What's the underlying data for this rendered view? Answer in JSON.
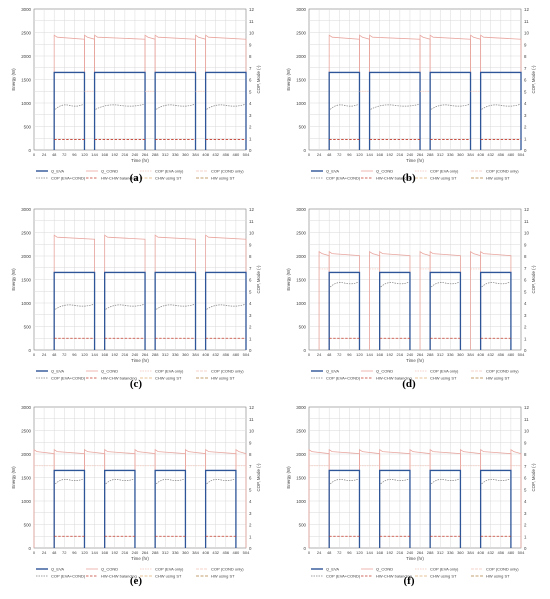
{
  "panel_labels": [
    "(a)",
    "(b)",
    "(c)",
    "(d)",
    "(e)",
    "(f)"
  ],
  "colors": {
    "q_eva": "#2e5597",
    "q_cond": "#e8a59e",
    "cop_eva_only": "#f2c2b8",
    "cop_cond_only": "#f2c2b8",
    "cop_eva_cond": "#808080",
    "hw_chw_balancing": "#c0392b",
    "chw_using_st": "#e0b07a",
    "hw_using_st": "#b08040",
    "grid": "#d9d9d9",
    "axis": "#7f7f7f"
  },
  "chart_data": [
    {
      "type": "line",
      "panel": "(a)",
      "xlabel": "Time (hr)",
      "ylabel_left": "Energy (W)",
      "ylabel_right": "COP, Mode (-)",
      "x_ticks": [
        0,
        24,
        48,
        72,
        96,
        120,
        144,
        168,
        192,
        216,
        240,
        264,
        288,
        312,
        336,
        360,
        384,
        408,
        432,
        456,
        480,
        504
      ],
      "y_left_ticks": [
        0,
        500,
        1000,
        1500,
        2000,
        2500,
        3000
      ],
      "y_right_ticks": [
        0,
        1,
        2,
        3,
        4,
        5,
        6,
        7,
        8,
        9,
        10,
        11,
        12
      ],
      "xlim": [
        0,
        504
      ],
      "ylim_left": [
        0,
        3000
      ],
      "ylim_right": [
        0,
        12
      ],
      "legend": [
        "Q_EVA",
        "Q_COND",
        "COP (EVA only)",
        "COP (COND only)",
        "COP (EVA+COND)",
        "HW-CHW balancing",
        "CHW using ST",
        "HW using ST"
      ],
      "legend_placement": "bottom",
      "q_eva_level": 1650,
      "q_cond_level": 2400,
      "cop_eva_cond_level": 3.8,
      "hw_chw_level": 0.9,
      "periods": [
        [
          48,
          120
        ],
        [
          144,
          264
        ],
        [
          288,
          384
        ],
        [
          408,
          504
        ]
      ],
      "cond_only_periods": [
        [
          120,
          144
        ],
        [
          264,
          288
        ],
        [
          384,
          408
        ]
      ]
    },
    {
      "type": "line",
      "panel": "(b)",
      "xlabel": "Time (hr)",
      "ylabel_left": "Energy (W)",
      "ylabel_right": "COP, Mode (-)",
      "x_ticks": [
        0,
        24,
        48,
        72,
        96,
        120,
        144,
        168,
        192,
        216,
        240,
        264,
        288,
        312,
        336,
        360,
        384,
        408,
        432,
        456,
        480,
        504
      ],
      "y_left_ticks": [
        0,
        500,
        1000,
        1500,
        2000,
        2500,
        3000
      ],
      "y_right_ticks": [
        0,
        1,
        2,
        3,
        4,
        5,
        6,
        7,
        8,
        9,
        10,
        11,
        12
      ],
      "xlim": [
        0,
        504
      ],
      "ylim_left": [
        0,
        3000
      ],
      "ylim_right": [
        0,
        12
      ],
      "legend": [
        "Q_EVA",
        "Q_COND",
        "COP (EVA only)",
        "COP (COND only)",
        "COP (EVA+COND)",
        "HW-CHW balancing",
        "CHW using ST",
        "HW using ST"
      ],
      "legend_placement": "bottom",
      "q_eva_level": 1650,
      "q_cond_level": 2400,
      "cop_eva_cond_level": 3.8,
      "hw_chw_level": 0.9,
      "periods": [
        [
          48,
          120
        ],
        [
          144,
          264
        ],
        [
          288,
          384
        ],
        [
          408,
          504
        ]
      ],
      "cond_only_periods": [
        [
          120,
          144
        ],
        [
          264,
          288
        ],
        [
          384,
          408
        ]
      ]
    },
    {
      "type": "line",
      "panel": "(c)",
      "xlabel": "Time (hr)",
      "ylabel_left": "Energy (W)",
      "ylabel_right": "COP, Mode (-)",
      "x_ticks": [
        0,
        24,
        48,
        72,
        96,
        120,
        144,
        168,
        192,
        216,
        240,
        264,
        288,
        312,
        336,
        360,
        384,
        408,
        432,
        456,
        480,
        504
      ],
      "y_left_ticks": [
        0,
        500,
        1000,
        1500,
        2000,
        2500,
        3000
      ],
      "y_right_ticks": [
        0,
        1,
        2,
        3,
        4,
        5,
        6,
        7,
        8,
        9,
        10,
        11,
        12
      ],
      "xlim": [
        0,
        504
      ],
      "ylim_left": [
        0,
        3000
      ],
      "ylim_right": [
        0,
        12
      ],
      "legend": [
        "Q_EVA",
        "Q_COND",
        "COP (EVA only)",
        "COP (COND only)",
        "COP (EVA+COND)",
        "HW-CHW balancing",
        "CHW using ST",
        "HW using ST"
      ],
      "legend_placement": "bottom",
      "q_eva_level": 1650,
      "q_cond_level": 2400,
      "cop_eva_cond_level": 3.8,
      "hw_chw_level": 1.0,
      "periods": [
        [
          48,
          144
        ],
        [
          168,
          264
        ],
        [
          288,
          384
        ],
        [
          408,
          504
        ]
      ],
      "cond_only_periods": []
    },
    {
      "type": "line",
      "panel": "(d)",
      "xlabel": "Time (hr)",
      "ylabel_left": "Energy (W)",
      "ylabel_right": "COP, Mode (-)",
      "x_ticks": [
        0,
        24,
        48,
        72,
        96,
        120,
        144,
        168,
        192,
        216,
        240,
        264,
        288,
        312,
        336,
        360,
        384,
        408,
        432,
        456,
        480,
        504
      ],
      "y_left_ticks": [
        0,
        500,
        1000,
        1500,
        2000,
        2500,
        3000
      ],
      "y_right_ticks": [
        0,
        1,
        2,
        3,
        4,
        5,
        6,
        7,
        8,
        9,
        10,
        11,
        12
      ],
      "xlim": [
        0,
        504
      ],
      "ylim_left": [
        0,
        3000
      ],
      "ylim_right": [
        0,
        12
      ],
      "legend": [
        "Q_EVA",
        "Q_COND",
        "COP (EVA only)",
        "COP (COND only)",
        "COP (EVA+COND)",
        "HW-CHW balancing",
        "CHW using ST",
        "HW using ST"
      ],
      "legend_placement": "bottom",
      "q_eva_level": 1650,
      "q_cond_level": 2050,
      "cop_eva_cond_level": 5.7,
      "hw_chw_level": 1.0,
      "periods": [
        [
          48,
          120
        ],
        [
          168,
          240
        ],
        [
          288,
          360
        ],
        [
          408,
          480
        ]
      ],
      "cond_only_periods": [
        [
          24,
          48
        ],
        [
          144,
          168
        ],
        [
          264,
          288
        ],
        [
          384,
          408
        ]
      ]
    },
    {
      "type": "line",
      "panel": "(e)",
      "xlabel": "Time (hr)",
      "ylabel_left": "Energy (W)",
      "ylabel_right": "COP, Mode (-)",
      "x_ticks": [
        0,
        24,
        48,
        72,
        96,
        120,
        144,
        168,
        192,
        216,
        240,
        264,
        288,
        312,
        336,
        360,
        384,
        408,
        432,
        456,
        480,
        504
      ],
      "y_left_ticks": [
        0,
        500,
        1000,
        1500,
        2000,
        2500,
        3000
      ],
      "y_right_ticks": [
        0,
        1,
        2,
        3,
        4,
        5,
        6,
        7,
        8,
        9,
        10,
        11,
        12
      ],
      "xlim": [
        0,
        504
      ],
      "ylim_left": [
        0,
        3000
      ],
      "ylim_right": [
        0,
        12
      ],
      "legend": [
        "Q_EVA",
        "Q_COND",
        "COP (EVA only)",
        "COP (COND only)",
        "COP (EVA+COND)",
        "HW-CHW balancing",
        "CHW using ST",
        "HW using ST"
      ],
      "legend_placement": "bottom",
      "q_eva_level": 1650,
      "q_cond_level": 2050,
      "cop_eva_cond_level": 5.8,
      "hw_chw_level": 1.0,
      "periods": [
        [
          48,
          120
        ],
        [
          168,
          240
        ],
        [
          288,
          360
        ],
        [
          408,
          480
        ]
      ],
      "cond_only_periods": [
        [
          0,
          48
        ],
        [
          120,
          168
        ],
        [
          240,
          288
        ],
        [
          360,
          408
        ],
        [
          480,
          504
        ]
      ]
    },
    {
      "type": "line",
      "panel": "(f)",
      "xlabel": "Time (hr)",
      "ylabel_left": "Energy (W)",
      "ylabel_right": "COP, Mode (-)",
      "x_ticks": [
        0,
        24,
        48,
        72,
        96,
        120,
        144,
        168,
        192,
        216,
        240,
        264,
        288,
        312,
        336,
        360,
        384,
        408,
        432,
        456,
        480,
        504
      ],
      "y_left_ticks": [
        0,
        500,
        1000,
        1500,
        2000,
        2500,
        3000
      ],
      "y_right_ticks": [
        0,
        1,
        2,
        3,
        4,
        5,
        6,
        7,
        8,
        9,
        10,
        11,
        12
      ],
      "xlim": [
        0,
        504
      ],
      "ylim_left": [
        0,
        3000
      ],
      "ylim_right": [
        0,
        12
      ],
      "legend": [
        "Q_EVA",
        "Q_COND",
        "COP (EVA only)",
        "COP (COND only)",
        "COP (EVA+COND)",
        "HW-CHW balancing",
        "CHW using ST",
        "HW using ST"
      ],
      "legend_placement": "bottom",
      "q_eva_level": 1650,
      "q_cond_level": 2050,
      "cop_eva_cond_level": 5.8,
      "hw_chw_level": 1.0,
      "periods": [
        [
          48,
          120
        ],
        [
          168,
          240
        ],
        [
          288,
          360
        ],
        [
          408,
          480
        ]
      ],
      "cond_only_periods": [
        [
          0,
          48
        ],
        [
          120,
          168
        ],
        [
          240,
          288
        ],
        [
          360,
          408
        ],
        [
          480,
          504
        ]
      ]
    }
  ]
}
